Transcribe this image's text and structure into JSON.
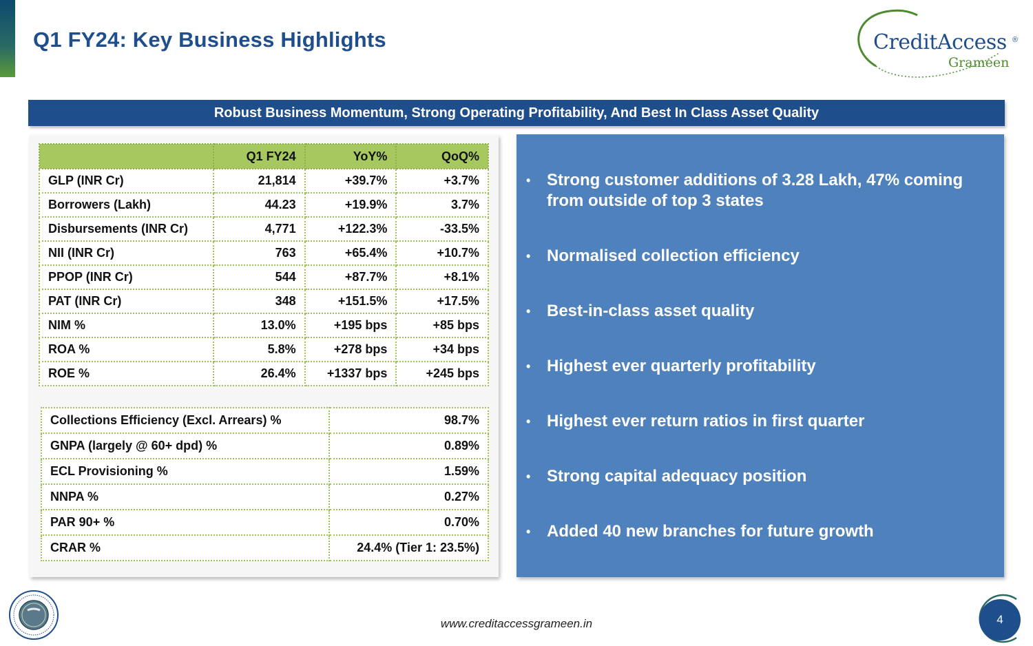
{
  "title": "Q1 FY24: Key Business Highlights",
  "logo": {
    "brand": "CreditAccess",
    "reg_mark": "®",
    "sub": "Grameen",
    "icon": "swoosh-ring-logo"
  },
  "banner": "Robust Business Momentum, Strong Operating Profitability, And Best In Class Asset Quality",
  "metrics_table": {
    "headers": [
      "",
      "Q1 FY24",
      "YoY%",
      "QoQ%"
    ],
    "rows": [
      [
        "GLP (INR Cr)",
        "21,814",
        "+39.7%",
        "+3.7%"
      ],
      [
        "Borrowers (Lakh)",
        "44.23",
        "+19.9%",
        "3.7%"
      ],
      [
        "Disbursements (INR Cr)",
        "4,771",
        "+122.3%",
        "-33.5%"
      ],
      [
        "NII (INR Cr)",
        "763",
        "+65.4%",
        "+10.7%"
      ],
      [
        "PPOP (INR Cr)",
        "544",
        "+87.7%",
        "+8.1%"
      ],
      [
        "PAT (INR Cr)",
        "348",
        "+151.5%",
        "+17.5%"
      ],
      [
        "NIM %",
        "13.0%",
        "+195 bps",
        "+85 bps"
      ],
      [
        "ROA %",
        "5.8%",
        "+278 bps",
        "+34 bps"
      ],
      [
        "ROE %",
        "26.4%",
        "+1337 bps",
        "+245 bps"
      ]
    ]
  },
  "quality_table": {
    "rows": [
      [
        "Collections Efficiency (Excl. Arrears) %",
        "98.7%"
      ],
      [
        "GNPA (largely @ 60+ dpd) %",
        "0.89%"
      ],
      [
        "ECL Provisioning %",
        "1.59%"
      ],
      [
        "NNPA %",
        "0.27%"
      ],
      [
        "PAR 90+ %",
        "0.70%"
      ],
      [
        "CRAR %",
        "24.4% (Tier 1: 23.5%)"
      ]
    ]
  },
  "highlights": [
    "Strong customer additions of 3.28 Lakh, 47% coming from outside of top 3 states",
    "Normalised collection efficiency",
    "Best-in-class asset quality",
    "Highest ever quarterly profitability",
    "Highest ever return ratios in first quarter",
    "Strong capital adequacy position",
    "Added 40 new branches for future growth"
  ],
  "bullet_glyph": "•",
  "badge": {
    "icon": "25-years-anniversary-seal-icon"
  },
  "footer": {
    "url": "www.creditaccessgrameen.in",
    "page": "4"
  },
  "colors": {
    "primary": "#1f4e8c",
    "green": "#a6c85f",
    "panel": "#4f81bd"
  }
}
